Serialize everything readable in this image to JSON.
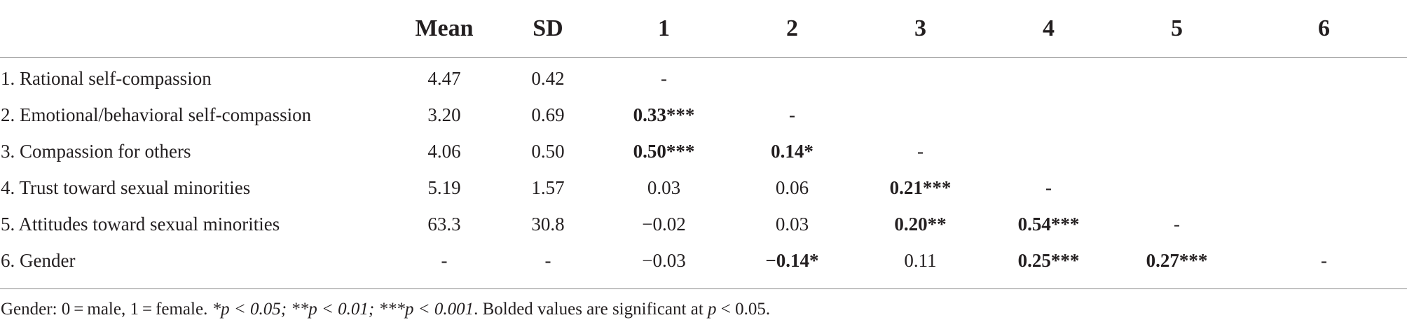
{
  "table": {
    "headers": [
      "",
      "Mean",
      "SD",
      "1",
      "2",
      "3",
      "4",
      "5",
      "6"
    ],
    "rows": [
      {
        "label": "1. Rational self-compassion",
        "cells": [
          {
            "text": "4.47",
            "bold": false
          },
          {
            "text": "0.42",
            "bold": false
          },
          {
            "text": "-",
            "bold": false
          },
          {
            "text": "",
            "bold": false
          },
          {
            "text": "",
            "bold": false
          },
          {
            "text": "",
            "bold": false
          },
          {
            "text": "",
            "bold": false
          },
          {
            "text": "",
            "bold": false
          }
        ]
      },
      {
        "label": "2. Emotional/behavioral self-compassion",
        "cells": [
          {
            "text": "3.20",
            "bold": false
          },
          {
            "text": "0.69",
            "bold": false
          },
          {
            "text": "0.33***",
            "bold": true
          },
          {
            "text": "-",
            "bold": false
          },
          {
            "text": "",
            "bold": false
          },
          {
            "text": "",
            "bold": false
          },
          {
            "text": "",
            "bold": false
          },
          {
            "text": "",
            "bold": false
          }
        ]
      },
      {
        "label": "3. Compassion for others",
        "cells": [
          {
            "text": "4.06",
            "bold": false
          },
          {
            "text": "0.50",
            "bold": false
          },
          {
            "text": "0.50***",
            "bold": true
          },
          {
            "text": "0.14*",
            "bold": true
          },
          {
            "text": "-",
            "bold": false
          },
          {
            "text": "",
            "bold": false
          },
          {
            "text": "",
            "bold": false
          },
          {
            "text": "",
            "bold": false
          }
        ]
      },
      {
        "label": "4. Trust toward sexual minorities",
        "cells": [
          {
            "text": "5.19",
            "bold": false
          },
          {
            "text": "1.57",
            "bold": false
          },
          {
            "text": "0.03",
            "bold": false
          },
          {
            "text": "0.06",
            "bold": false
          },
          {
            "text": "0.21***",
            "bold": true
          },
          {
            "text": "-",
            "bold": false
          },
          {
            "text": "",
            "bold": false
          },
          {
            "text": "",
            "bold": false
          }
        ]
      },
      {
        "label": "5. Attitudes toward sexual minorities",
        "cells": [
          {
            "text": "63.3",
            "bold": false
          },
          {
            "text": "30.8",
            "bold": false
          },
          {
            "text": "−0.02",
            "bold": false
          },
          {
            "text": "0.03",
            "bold": false
          },
          {
            "text": "0.20**",
            "bold": true
          },
          {
            "text": "0.54***",
            "bold": true
          },
          {
            "text": "-",
            "bold": false
          },
          {
            "text": "",
            "bold": false
          }
        ]
      },
      {
        "label": "6. Gender",
        "cells": [
          {
            "text": "-",
            "bold": false
          },
          {
            "text": "-",
            "bold": false
          },
          {
            "text": "−0.03",
            "bold": false
          },
          {
            "text": "−0.14*",
            "bold": true
          },
          {
            "text": "0.11",
            "bold": false
          },
          {
            "text": "0.25***",
            "bold": true
          },
          {
            "text": "0.27***",
            "bold": true
          },
          {
            "text": "-",
            "bold": false
          }
        ]
      }
    ]
  },
  "footnote": {
    "lead": "Gender: 0 = male, 1 = female. ",
    "stats": "*p < 0.05; **p < 0.01; ***p < 0.001",
    "middle": ". Bolded values are significant at ",
    "p": "p",
    "tail": " < 0.05."
  }
}
